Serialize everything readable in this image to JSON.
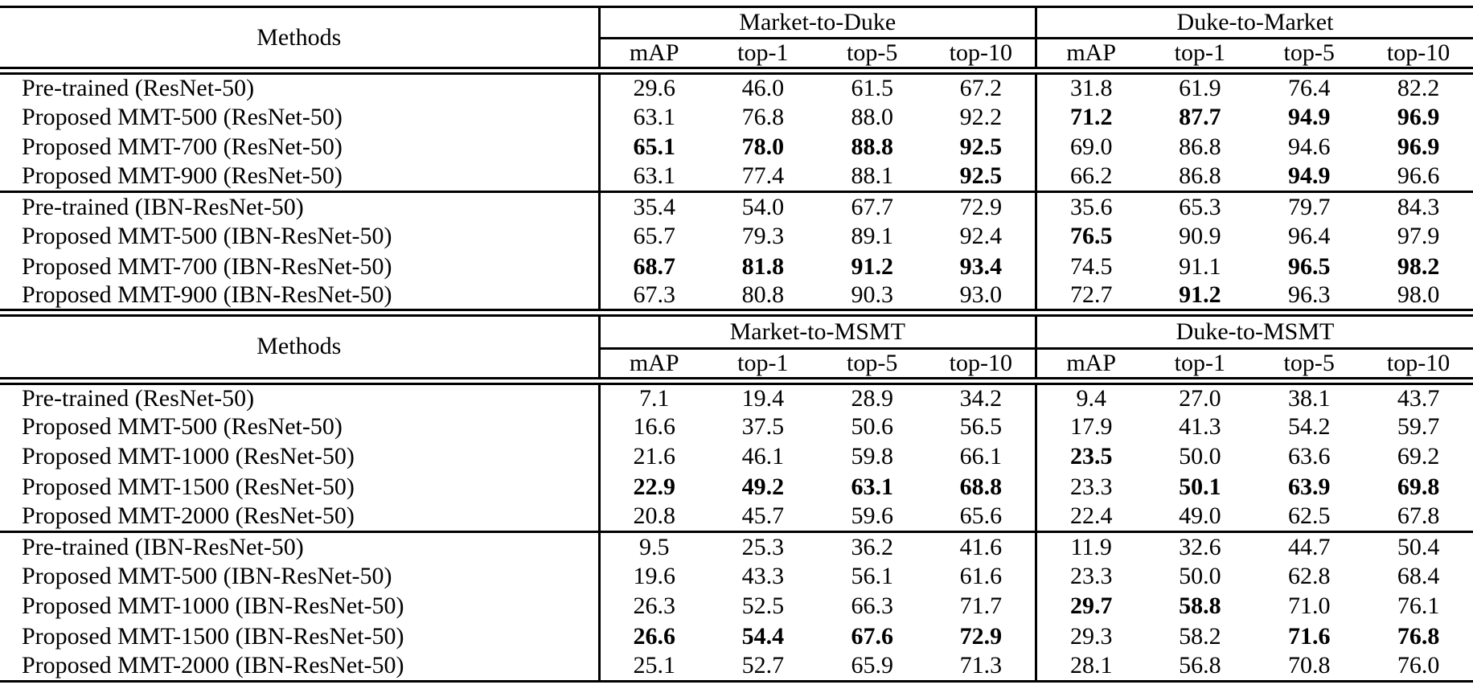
{
  "tables": [
    {
      "methods_header": "Methods",
      "groups": [
        {
          "label": "Market-to-Duke",
          "columns": [
            "mAP",
            "top-1",
            "top-5",
            "top-10"
          ]
        },
        {
          "label": "Duke-to-Market",
          "columns": [
            "mAP",
            "top-1",
            "top-5",
            "top-10"
          ]
        }
      ],
      "sections": [
        {
          "rows": [
            {
              "method": "Pre-trained (ResNet-50)",
              "values": [
                "29.6",
                "46.0",
                "61.5",
                "67.2",
                "31.8",
                "61.9",
                "76.4",
                "82.2"
              ],
              "bold": [
                false,
                false,
                false,
                false,
                false,
                false,
                false,
                false
              ]
            },
            {
              "method": "Proposed MMT-500 (ResNet-50)",
              "values": [
                "63.1",
                "76.8",
                "88.0",
                "92.2",
                "71.2",
                "87.7",
                "94.9",
                "96.9"
              ],
              "bold": [
                false,
                false,
                false,
                false,
                true,
                true,
                true,
                true
              ]
            },
            {
              "method": "Proposed MMT-700 (ResNet-50)",
              "values": [
                "65.1",
                "78.0",
                "88.8",
                "92.5",
                "69.0",
                "86.8",
                "94.6",
                "96.9"
              ],
              "bold": [
                true,
                true,
                true,
                true,
                false,
                false,
                false,
                true
              ]
            },
            {
              "method": "Proposed MMT-900 (ResNet-50)",
              "values": [
                "63.1",
                "77.4",
                "88.1",
                "92.5",
                "66.2",
                "86.8",
                "94.9",
                "96.6"
              ],
              "bold": [
                false,
                false,
                false,
                true,
                false,
                false,
                true,
                false
              ]
            }
          ]
        },
        {
          "rows": [
            {
              "method": "Pre-trained (IBN-ResNet-50)",
              "values": [
                "35.4",
                "54.0",
                "67.7",
                "72.9",
                "35.6",
                "65.3",
                "79.7",
                "84.3"
              ],
              "bold": [
                false,
                false,
                false,
                false,
                false,
                false,
                false,
                false
              ]
            },
            {
              "method": "Proposed MMT-500 (IBN-ResNet-50)",
              "values": [
                "65.7",
                "79.3",
                "89.1",
                "92.4",
                "76.5",
                "90.9",
                "96.4",
                "97.9"
              ],
              "bold": [
                false,
                false,
                false,
                false,
                true,
                false,
                false,
                false
              ]
            },
            {
              "method": "Proposed MMT-700 (IBN-ResNet-50)",
              "values": [
                "68.7",
                "81.8",
                "91.2",
                "93.4",
                "74.5",
                "91.1",
                "96.5",
                "98.2"
              ],
              "bold": [
                true,
                true,
                true,
                true,
                false,
                false,
                true,
                true
              ]
            },
            {
              "method": "Proposed MMT-900 (IBN-ResNet-50)",
              "values": [
                "67.3",
                "80.8",
                "90.3",
                "93.0",
                "72.7",
                "91.2",
                "96.3",
                "98.0"
              ],
              "bold": [
                false,
                false,
                false,
                false,
                false,
                true,
                false,
                false
              ]
            }
          ]
        }
      ]
    },
    {
      "methods_header": "Methods",
      "groups": [
        {
          "label": "Market-to-MSMT",
          "columns": [
            "mAP",
            "top-1",
            "top-5",
            "top-10"
          ]
        },
        {
          "label": "Duke-to-MSMT",
          "columns": [
            "mAP",
            "top-1",
            "top-5",
            "top-10"
          ]
        }
      ],
      "sections": [
        {
          "rows": [
            {
              "method": "Pre-trained (ResNet-50)",
              "values": [
                "7.1",
                "19.4",
                "28.9",
                "34.2",
                "9.4",
                "27.0",
                "38.1",
                "43.7"
              ],
              "bold": [
                false,
                false,
                false,
                false,
                false,
                false,
                false,
                false
              ]
            },
            {
              "method": "Proposed MMT-500 (ResNet-50)",
              "values": [
                "16.6",
                "37.5",
                "50.6",
                "56.5",
                "17.9",
                "41.3",
                "54.2",
                "59.7"
              ],
              "bold": [
                false,
                false,
                false,
                false,
                false,
                false,
                false,
                false
              ]
            },
            {
              "method": "Proposed MMT-1000 (ResNet-50)",
              "values": [
                "21.6",
                "46.1",
                "59.8",
                "66.1",
                "23.5",
                "50.0",
                "63.6",
                "69.2"
              ],
              "bold": [
                false,
                false,
                false,
                false,
                true,
                false,
                false,
                false
              ]
            },
            {
              "method": "Proposed MMT-1500 (ResNet-50)",
              "values": [
                "22.9",
                "49.2",
                "63.1",
                "68.8",
                "23.3",
                "50.1",
                "63.9",
                "69.8"
              ],
              "bold": [
                true,
                true,
                true,
                true,
                false,
                true,
                true,
                true
              ]
            },
            {
              "method": "Proposed MMT-2000 (ResNet-50)",
              "values": [
                "20.8",
                "45.7",
                "59.6",
                "65.6",
                "22.4",
                "49.0",
                "62.5",
                "67.8"
              ],
              "bold": [
                false,
                false,
                false,
                false,
                false,
                false,
                false,
                false
              ]
            }
          ]
        },
        {
          "rows": [
            {
              "method": "Pre-trained (IBN-ResNet-50)",
              "values": [
                "9.5",
                "25.3",
                "36.2",
                "41.6",
                "11.9",
                "32.6",
                "44.7",
                "50.4"
              ],
              "bold": [
                false,
                false,
                false,
                false,
                false,
                false,
                false,
                false
              ]
            },
            {
              "method": "Proposed MMT-500 (IBN-ResNet-50)",
              "values": [
                "19.6",
                "43.3",
                "56.1",
                "61.6",
                "23.3",
                "50.0",
                "62.8",
                "68.4"
              ],
              "bold": [
                false,
                false,
                false,
                false,
                false,
                false,
                false,
                false
              ]
            },
            {
              "method": "Proposed MMT-1000 (IBN-ResNet-50)",
              "values": [
                "26.3",
                "52.5",
                "66.3",
                "71.7",
                "29.7",
                "58.8",
                "71.0",
                "76.1"
              ],
              "bold": [
                false,
                false,
                false,
                false,
                true,
                true,
                false,
                false
              ]
            },
            {
              "method": "Proposed MMT-1500 (IBN-ResNet-50)",
              "values": [
                "26.6",
                "54.4",
                "67.6",
                "72.9",
                "29.3",
                "58.2",
                "71.6",
                "76.8"
              ],
              "bold": [
                true,
                true,
                true,
                true,
                false,
                false,
                true,
                true
              ]
            },
            {
              "method": "Proposed MMT-2000 (IBN-ResNet-50)",
              "values": [
                "25.1",
                "52.7",
                "65.9",
                "71.3",
                "28.1",
                "56.8",
                "70.8",
                "76.0"
              ],
              "bold": [
                false,
                false,
                false,
                false,
                false,
                false,
                false,
                false
              ]
            }
          ]
        }
      ]
    }
  ]
}
